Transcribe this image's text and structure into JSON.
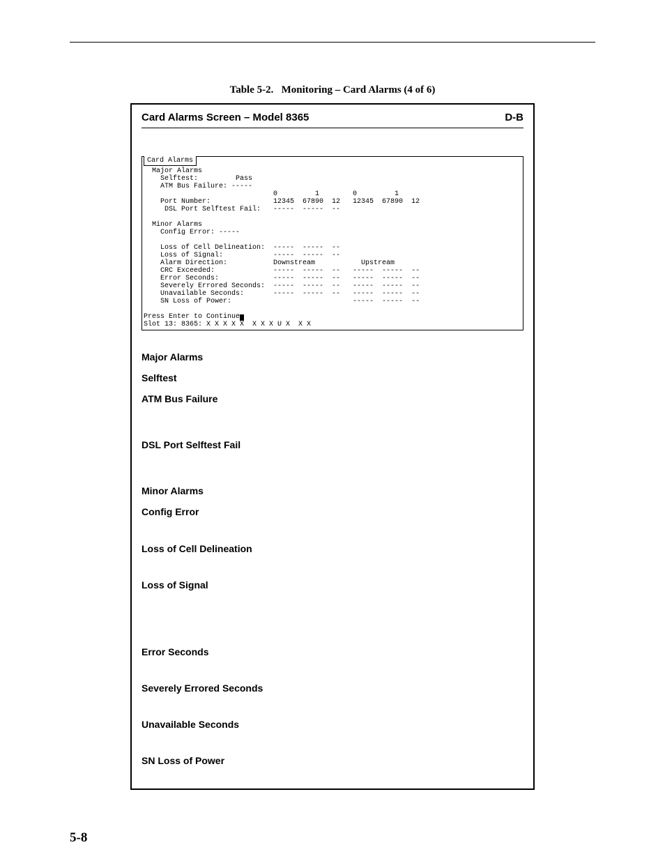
{
  "caption_label": "Table 5-2.",
  "caption_text": "Monitoring – Card Alarms (4 of 6)",
  "card_title": "Card Alarms Screen – Model 8365",
  "card_tag": "D-B",
  "terminal": {
    "tab": "Card Alarms",
    "line1": "  Major Alarms",
    "line2": "    Selftest:         Pass",
    "line3": "    ATM Bus Failure: -----",
    "line4": "                               0         1        0         1",
    "line5": "    Port Number:               12345  67890  12   12345  67890  12",
    "line6": "     DSL Port Selftest Fail:   -----  -----  --",
    "line7": "  Minor Alarms",
    "line8": "    Config Error: -----",
    "line9": "    Loss of Cell Delineation:  -----  -----  --",
    "line10": "    Loss of Signal:            -----  -----  --",
    "line11": "    Alarm Direction:           Downstream           Upstream",
    "line12": "    CRC Exceeded:              -----  -----  --   -----  -----  --",
    "line13": "    Error Seconds:             -----  -----  --   -----  -----  --",
    "line14": "    Severely Errored Seconds:  -----  -----  --   -----  -----  --",
    "line15": "    Unavailable Seconds:       -----  -----  --   -----  -----  --",
    "line16": "    SN Loss of Power:                             -----  -----  --",
    "footer1": "Press Enter to Continue",
    "footer2": "Slot 13: 8365: X X X X X  X X X U X  X X"
  },
  "defs": {
    "major": "Major Alarms",
    "selftest": "Selftest",
    "atm": "ATM Bus Failure",
    "dsl": "DSL Port Selftest Fail",
    "minor": "Minor Alarms",
    "config": "Config Error",
    "loss_cd": "Loss of Cell Delineation",
    "loss_sig": "Loss of Signal",
    "err_sec": "Error Seconds",
    "sev_err": "Severely Errored Seconds",
    "unavail": "Unavailable Seconds",
    "sn_loss": "SN Loss of Power"
  },
  "page_number": "5-8"
}
